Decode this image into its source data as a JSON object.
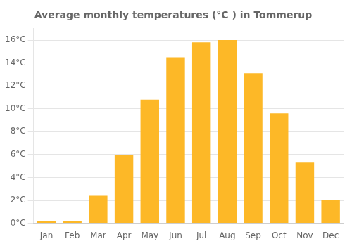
{
  "chart_data": {
    "type": "bar",
    "title": "Average monthly temperatures (°C ) in Tommerup",
    "categories": [
      "Jan",
      "Feb",
      "Mar",
      "Apr",
      "May",
      "Jun",
      "Jul",
      "Aug",
      "Sep",
      "Oct",
      "Nov",
      "Dec"
    ],
    "values": [
      0.2,
      0.2,
      2.4,
      6.0,
      10.8,
      14.5,
      15.8,
      16.0,
      13.1,
      9.6,
      5.3,
      2.0
    ],
    "color": "#FDB827",
    "ylim": [
      0,
      17
    ],
    "yticks": [
      {
        "value": 0,
        "label": "0°C"
      },
      {
        "value": 2,
        "label": "2°C"
      },
      {
        "value": 4,
        "label": "4°C"
      },
      {
        "value": 6,
        "label": "6°C"
      },
      {
        "value": 8,
        "label": "8°C"
      },
      {
        "value": 10,
        "label": "10°C"
      },
      {
        "value": 12,
        "label": "12°C"
      },
      {
        "value": 14,
        "label": "14°C"
      },
      {
        "value": 16,
        "label": "16°C"
      }
    ],
    "grid": true
  }
}
